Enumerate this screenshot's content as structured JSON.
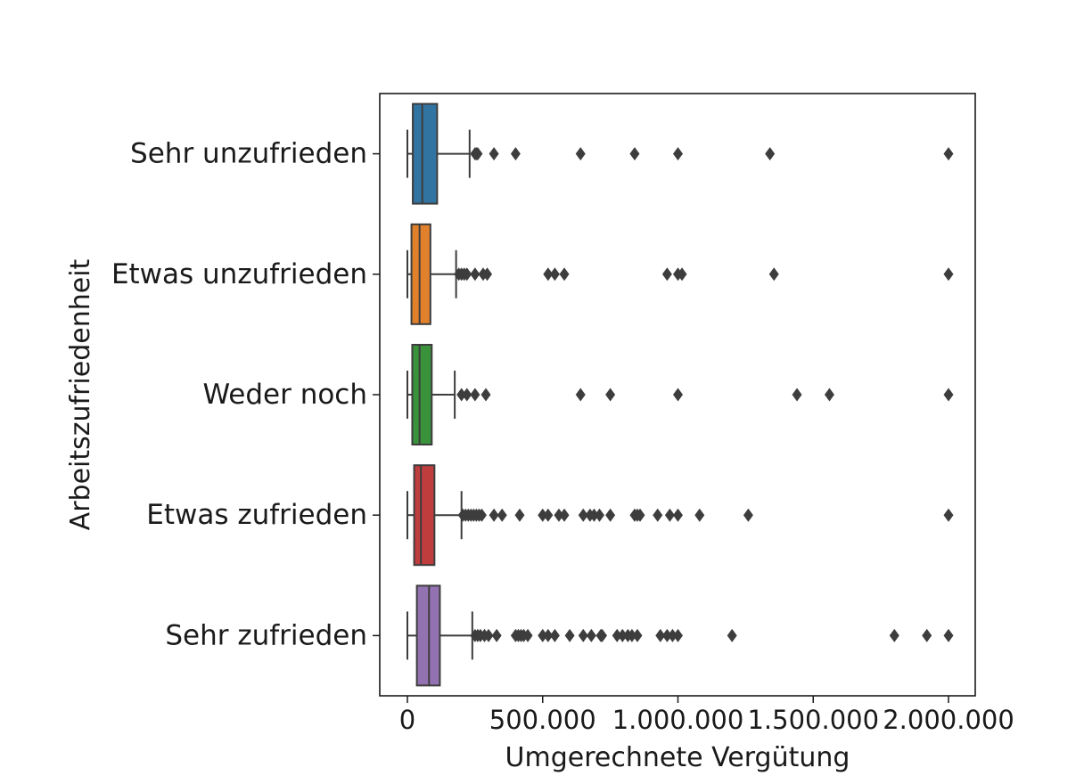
{
  "chart_data": {
    "type": "boxplot",
    "orientation": "horizontal",
    "xlabel": "Umgerechnete Vergütung",
    "ylabel": "Arbeitszufriedenheit",
    "xlim": [
      -100000,
      2100000
    ],
    "xticks": [
      {
        "value": 0,
        "label": "0"
      },
      {
        "value": 500000,
        "label": "500.000"
      },
      {
        "value": 1000000,
        "label": "1.000.000"
      },
      {
        "value": 1500000,
        "label": "1.500.000"
      },
      {
        "value": 2000000,
        "label": "2.000.000"
      }
    ],
    "grid": false,
    "legend": "none",
    "categories": [
      {
        "name": "Sehr unzufrieden",
        "color": "#3274a1",
        "whisker_low": 0,
        "q1": 20000,
        "median": 55000,
        "q3": 110000,
        "whisker_high": 230000,
        "outliers": [
          250000,
          255000,
          260000,
          320000,
          400000,
          640000,
          840000,
          1000000,
          1340000,
          2000000
        ]
      },
      {
        "name": "Etwas unzufrieden",
        "color": "#e1812c",
        "whisker_low": 0,
        "q1": 15000,
        "median": 45000,
        "q3": 85000,
        "whisker_high": 180000,
        "outliers": [
          190000,
          200000,
          210000,
          220000,
          250000,
          280000,
          295000,
          520000,
          545000,
          580000,
          960000,
          1000000,
          1015000,
          1355000,
          2000000
        ]
      },
      {
        "name": "Weder noch",
        "color": "#3a923a",
        "whisker_low": 0,
        "q1": 18000,
        "median": 45000,
        "q3": 90000,
        "whisker_high": 175000,
        "outliers": [
          200000,
          220000,
          250000,
          290000,
          640000,
          750000,
          1000000,
          1440000,
          1560000,
          2000000
        ]
      },
      {
        "name": "Etwas zufrieden",
        "color": "#c03d3e",
        "whisker_low": 0,
        "q1": 25000,
        "median": 50000,
        "q3": 100000,
        "whisker_high": 200000,
        "outliers": [
          205000,
          215000,
          225000,
          235000,
          245000,
          255000,
          265000,
          275000,
          320000,
          350000,
          415000,
          500000,
          520000,
          560000,
          580000,
          650000,
          675000,
          690000,
          710000,
          750000,
          840000,
          850000,
          860000,
          925000,
          970000,
          1000000,
          1080000,
          1260000,
          2000000
        ]
      },
      {
        "name": "Sehr zufrieden",
        "color": "#9372b2",
        "whisker_low": 0,
        "q1": 35000,
        "median": 80000,
        "q3": 120000,
        "whisker_high": 240000,
        "outliers": [
          250000,
          260000,
          270000,
          285000,
          300000,
          330000,
          400000,
          410000,
          420000,
          430000,
          445000,
          500000,
          520000,
          545000,
          600000,
          650000,
          680000,
          715000,
          720000,
          775000,
          795000,
          815000,
          830000,
          850000,
          935000,
          960000,
          980000,
          1000000,
          1200000,
          1800000,
          1920000,
          2000000
        ]
      }
    ]
  }
}
